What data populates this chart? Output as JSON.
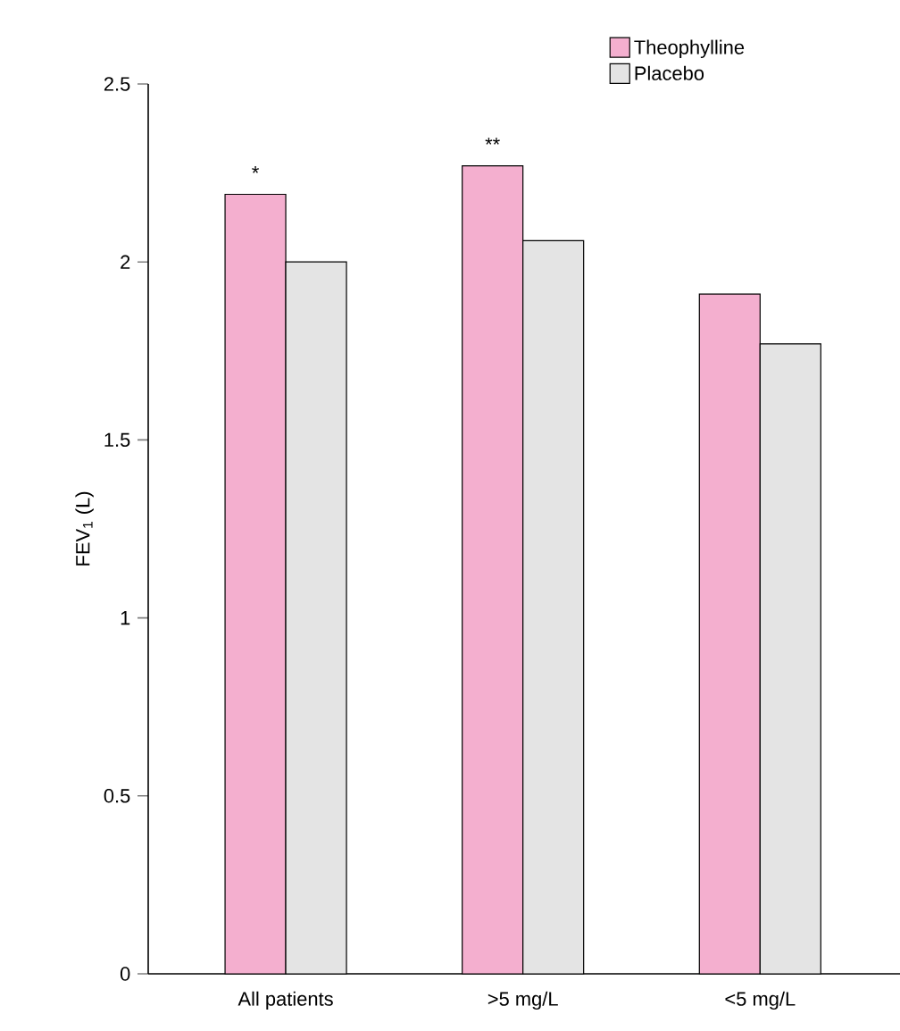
{
  "chart_data": {
    "type": "bar",
    "ylabel": "FEV$_{1}$ (L)",
    "categories": [
      "All patients",
      ">5 mg/L",
      "<5 mg/L"
    ],
    "series": [
      {
        "name": "Theophylline",
        "color": "#f4afcf",
        "values": [
          2.19,
          2.27,
          1.91
        ]
      },
      {
        "name": "Placebo",
        "color": "#e4e4e4",
        "values": [
          2.0,
          2.06,
          1.77
        ]
      }
    ],
    "ylim": [
      0,
      2.5
    ],
    "yticks": [
      0,
      0.5,
      1,
      1.5,
      2,
      2.5
    ],
    "annotations": [
      {
        "text": "*",
        "x": "All patients",
        "y": 2.19
      },
      {
        "text": "**",
        "x": ">5 mg/L",
        "y": 2.27
      }
    ],
    "legend": "top right",
    "grid": false
  }
}
